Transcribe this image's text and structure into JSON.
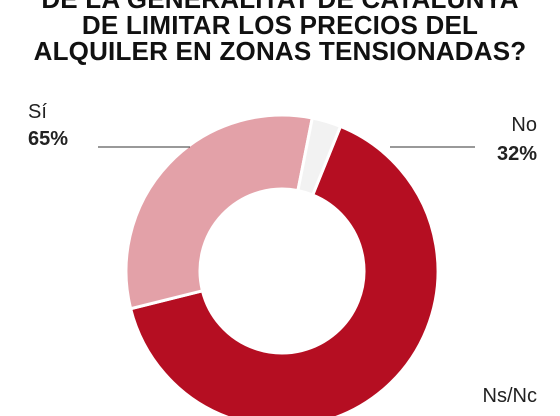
{
  "chart_data": {
    "type": "pie",
    "title_lines": [
      "DE LA GENERALITAT DE CATALUNYA",
      "DE LIMITAR LOS PRECIOS DEL",
      "ALQUILER EN ZONAS TENSIONADAS?"
    ],
    "slices": [
      {
        "label": "Sí",
        "value": 65,
        "value_label": "65%",
        "color": "#b50e22"
      },
      {
        "label": "No",
        "value": 32,
        "value_label": "32%",
        "color": "#e3a1a8"
      },
      {
        "label": "Ns/Nc",
        "value": 3,
        "value_label": "",
        "color": "#f2f2f2"
      }
    ],
    "donut": true,
    "start_angle_deg": 22,
    "legend": "direct-labels"
  }
}
